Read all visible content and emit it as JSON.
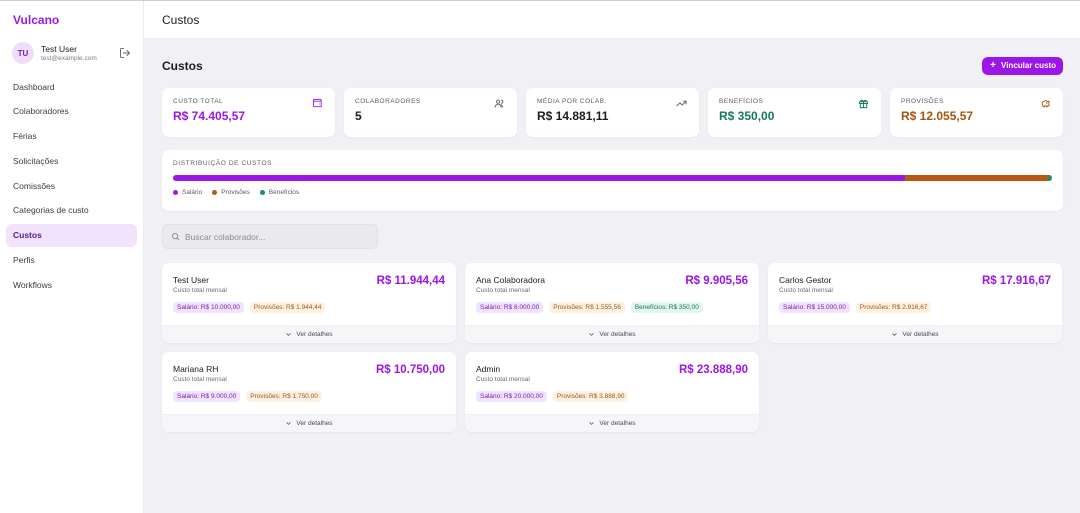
{
  "sidebar": {
    "brand": "Vulcano",
    "user": {
      "initials": "TU",
      "name": "Test User",
      "email": "test@example.com"
    },
    "items": [
      {
        "label": "Dashboard",
        "active": false
      },
      {
        "label": "Colaboradores",
        "active": false
      },
      {
        "label": "Férias",
        "active": false
      },
      {
        "label": "Solicitações",
        "active": false
      },
      {
        "label": "Comissões",
        "active": false
      },
      {
        "label": "Categorias de custo",
        "active": false
      },
      {
        "label": "Custos",
        "active": true
      },
      {
        "label": "Perfis",
        "active": false
      },
      {
        "label": "Workflows",
        "active": false
      }
    ]
  },
  "header": {
    "title": "Custos"
  },
  "page": {
    "title": "Custos",
    "add_label": "Vincular custo"
  },
  "stats": [
    {
      "label": "CUSTO TOTAL",
      "value": "R$ 74.405,57",
      "color": "#9c16e8",
      "icon": "wallet-icon"
    },
    {
      "label": "COLABORADORES",
      "value": "5",
      "color": "#1c1b22",
      "icon": "users-icon"
    },
    {
      "label": "MÉDIA POR COLAB.",
      "value": "R$ 14.881,11",
      "color": "#1c1b22",
      "icon": "trending-up-icon"
    },
    {
      "label": "BENEFÍCIOS",
      "value": "R$ 350,00",
      "color": "#17795a",
      "icon": "gift-icon"
    },
    {
      "label": "PROVISÕES",
      "value": "R$ 12.055,57",
      "color": "#a6540f",
      "icon": "piggy-bank-icon"
    }
  ],
  "distribution": {
    "title": "DISTRIBUIÇÃO DE CUSTOS",
    "segments": [
      {
        "label": "Salário",
        "value": 62000.0,
        "color": "#9c16e8"
      },
      {
        "label": "Provisões",
        "value": 12055.57,
        "color": "#b8590f"
      },
      {
        "label": "Benefícios",
        "value": 350.0,
        "color": "#17916a"
      }
    ]
  },
  "search": {
    "placeholder": "Buscar colaborador...",
    "value": ""
  },
  "cards": [
    {
      "name": "Test User",
      "subtitle": "Custo total mensal",
      "total": "R$ 11.944,44",
      "tags": [
        {
          "type": "sal",
          "text": "Salário: R$ 10.000,00"
        },
        {
          "type": "prov",
          "text": "Provisões: R$ 1.944,44"
        }
      ],
      "details": "Ver detalhes"
    },
    {
      "name": "Ana Colaboradora",
      "subtitle": "Custo total mensal",
      "total": "R$ 9.905,56",
      "tags": [
        {
          "type": "sal",
          "text": "Salário: R$ 8.000,00"
        },
        {
          "type": "prov",
          "text": "Provisões: R$ 1.555,56"
        },
        {
          "type": "ben",
          "text": "Benefícios: R$ 350,00"
        }
      ],
      "details": "Ver detalhes"
    },
    {
      "name": "Carlos Gestor",
      "subtitle": "Custo total mensal",
      "total": "R$ 17.916,67",
      "tags": [
        {
          "type": "sal",
          "text": "Salário: R$ 15.000,00"
        },
        {
          "type": "prov",
          "text": "Provisões: R$ 2.916,67"
        }
      ],
      "details": "Ver detalhes"
    },
    {
      "name": "Mariana RH",
      "subtitle": "Custo total mensal",
      "total": "R$ 10.750,00",
      "tags": [
        {
          "type": "sal",
          "text": "Salário: R$ 9.000,00"
        },
        {
          "type": "prov",
          "text": "Provisões: R$ 1.750,00"
        }
      ],
      "details": "Ver detalhes"
    },
    {
      "name": "Admin",
      "subtitle": "Custo total mensal",
      "total": "R$ 23.888,90",
      "tags": [
        {
          "type": "sal",
          "text": "Salário: R$ 20.000,00"
        },
        {
          "type": "prov",
          "text": "Provisões: R$ 3.888,90"
        }
      ],
      "details": "Ver detalhes"
    }
  ]
}
